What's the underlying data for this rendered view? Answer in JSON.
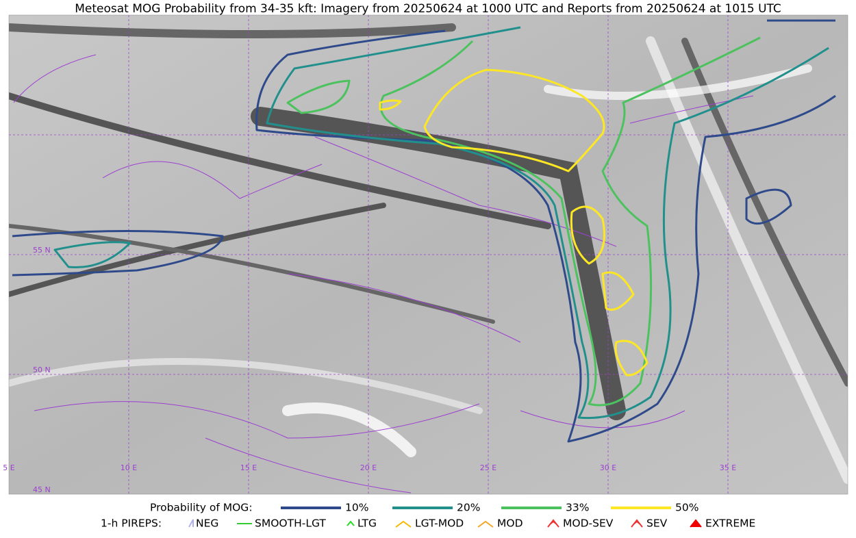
{
  "title": "Meteosat MOG Probability from 34-35 kft: Imagery from 20250624 at 1000 UTC and Reports from 20250624 at 1015 UTC",
  "map": {
    "lat_labels": [
      "55 N",
      "50 N",
      "45 N"
    ],
    "lon_labels": [
      "5 E",
      "10 E",
      "15 E",
      "20 E",
      "25 E",
      "30 E",
      "35 E"
    ]
  },
  "legend": {
    "probability": {
      "label": "Probability of MOG:",
      "items": [
        {
          "label": "10%",
          "color": "#2f4a8a"
        },
        {
          "label": "20%",
          "color": "#21908c"
        },
        {
          "label": "33%",
          "color": "#4cc25f"
        },
        {
          "label": "50%",
          "color": "#fde725"
        }
      ]
    },
    "pireps": {
      "label": "1-h PIREPS:",
      "items": [
        {
          "label": "NEG",
          "color": "#b0b0f0"
        },
        {
          "label": "SMOOTH-LGT",
          "color": "#33cc33"
        },
        {
          "label": "LTG",
          "color": "#22dd22"
        },
        {
          "label": "LGT-MOD",
          "color": "#f5b800"
        },
        {
          "label": "MOD",
          "color": "#f5a623"
        },
        {
          "label": "MOD-SEV",
          "color": "#e33"
        },
        {
          "label": "SEV",
          "color": "#e33"
        },
        {
          "label": "EXTREME",
          "color": "#e00"
        }
      ]
    }
  }
}
